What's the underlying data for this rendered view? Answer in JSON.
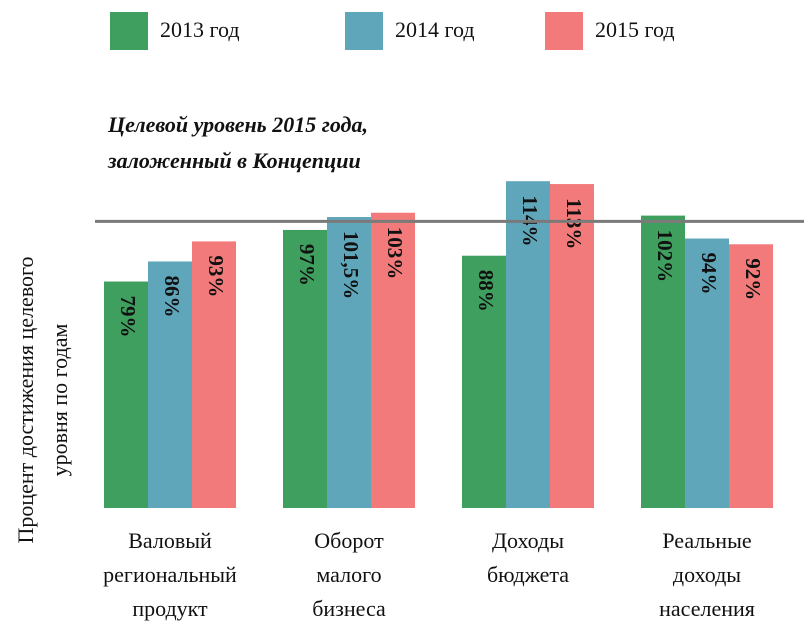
{
  "chart_data": {
    "type": "bar",
    "y_label": [
      "Процент достижения целевого",
      "уровня по годам"
    ],
    "annotation": [
      "Целевой уровень 2015 года,",
      "заложенный в Концепции"
    ],
    "target_value": 100,
    "categories": [
      "Валовый региональный продукт",
      "Оборот малого бизнеса",
      "Доходы бюджета",
      "Реальные доходы населения"
    ],
    "series": [
      {
        "name": "2013 год",
        "color": "#3f9f5f",
        "values": [
          79,
          97,
          88,
          102
        ],
        "value_labels": [
          "79%",
          "97%",
          "88%",
          "102%"
        ]
      },
      {
        "name": "2014 год",
        "color": "#5fa6ba",
        "values": [
          86,
          101.5,
          114,
          94
        ],
        "value_labels": [
          "86%",
          "101,5%",
          "114%",
          "94%"
        ]
      },
      {
        "name": "2015 год",
        "color": "#f27a7a",
        "values": [
          93,
          103,
          113,
          92
        ],
        "value_labels": [
          "93%",
          "103%",
          "113%",
          "92%"
        ]
      }
    ],
    "ylim": [
      0,
      120
    ]
  }
}
